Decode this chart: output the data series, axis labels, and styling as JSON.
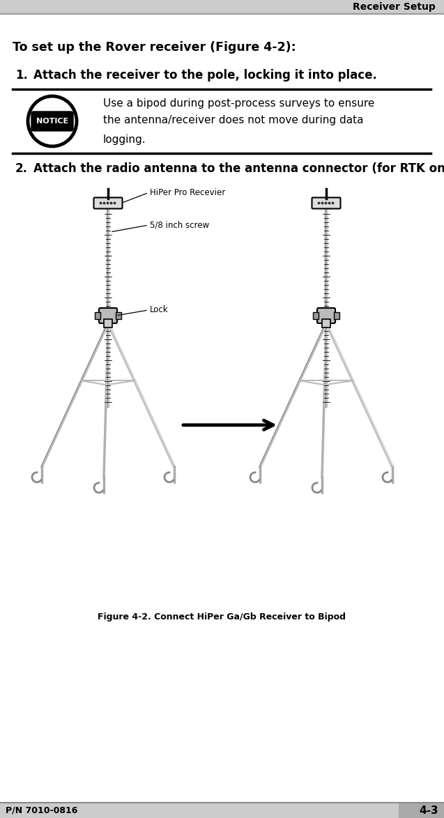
{
  "header_text": "Receiver Setup",
  "title_bold": "To set up the Rover receiver",
  "title_normal": " (Figure 4-2):",
  "step1": "Attach the receiver to the pole, locking it into place.",
  "step2": "Attach the radio antenna to the antenna connector (for RTK only).",
  "notice_text_line1": "Use a bipod during post-process surveys to ensure",
  "notice_text_line2": "the antenna/receiver does not move during data",
  "notice_text_line3": "logging.",
  "notice_label": "NOTICE",
  "figure_caption": "Figure 4-2. Connect HiPer Ga/Gb Receiver to Bipod",
  "label_hiper": "HiPer Pro Recevier",
  "label_screw": "5/8 inch screw",
  "label_lock": "Lock",
  "footer_left": "P/N 7010-0816",
  "footer_right": "4-3",
  "bg_color": "#ffffff",
  "text_color": "#000000",
  "header_bg": "#cccccc",
  "footer_bg_left": "#cccccc",
  "footer_bg_right": "#aaaaaa"
}
